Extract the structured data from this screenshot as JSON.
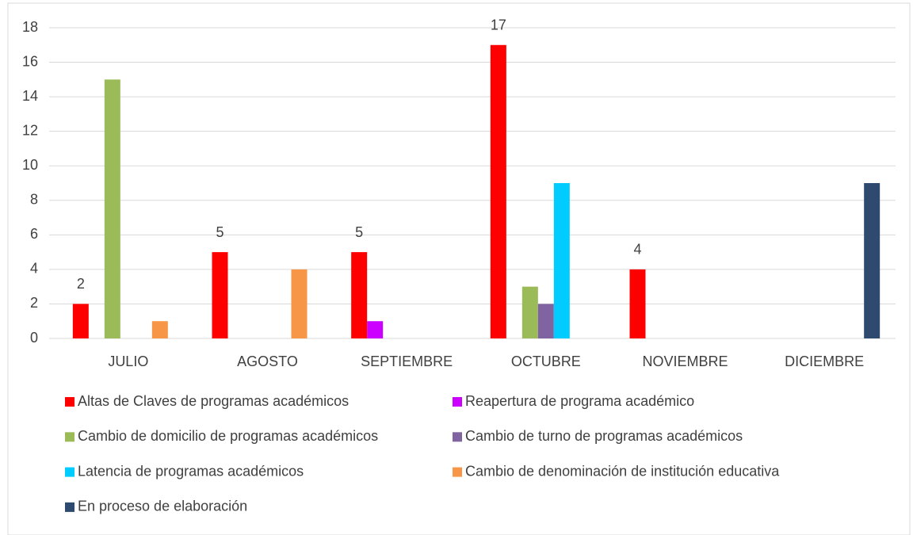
{
  "chart_data": {
    "type": "bar",
    "categories": [
      "JULIO",
      "AGOSTO",
      "SEPTIEMBRE",
      "OCTUBRE",
      "NOVIEMBRE",
      "DICIEMBRE"
    ],
    "series": [
      {
        "name": "Altas de Claves de programas académicos",
        "color": "#ff0000",
        "values": [
          2,
          5,
          5,
          17,
          4,
          0
        ],
        "data_labels": true
      },
      {
        "name": "Reapertura  de programa académico",
        "color": "#cc00ff",
        "values": [
          0,
          0,
          1,
          0,
          0,
          0
        ]
      },
      {
        "name": "Cambio de domicilio de programas académicos",
        "color": "#9bbb59",
        "values": [
          15,
          0,
          0,
          3,
          0,
          0
        ]
      },
      {
        "name": "Cambio de turno de programas académicos",
        "color": "#8064a2",
        "values": [
          0,
          0,
          0,
          2,
          0,
          0
        ]
      },
      {
        "name": "Latencia de programas académicos",
        "color": "#00ccff",
        "values": [
          0,
          0,
          0,
          9,
          0,
          0
        ]
      },
      {
        "name": "Cambio de denominación de institución educativa",
        "color": "#f79646",
        "values": [
          1,
          4,
          0,
          0,
          0,
          0
        ]
      },
      {
        "name": "En proceso de elaboración",
        "color": "#2e4a6e",
        "values": [
          0,
          0,
          0,
          0,
          0,
          9
        ]
      }
    ],
    "ylim": [
      0,
      18
    ],
    "yticks": [
      0,
      2,
      4,
      6,
      8,
      10,
      12,
      14,
      16,
      18
    ],
    "grid": true,
    "legend": "bottom"
  }
}
